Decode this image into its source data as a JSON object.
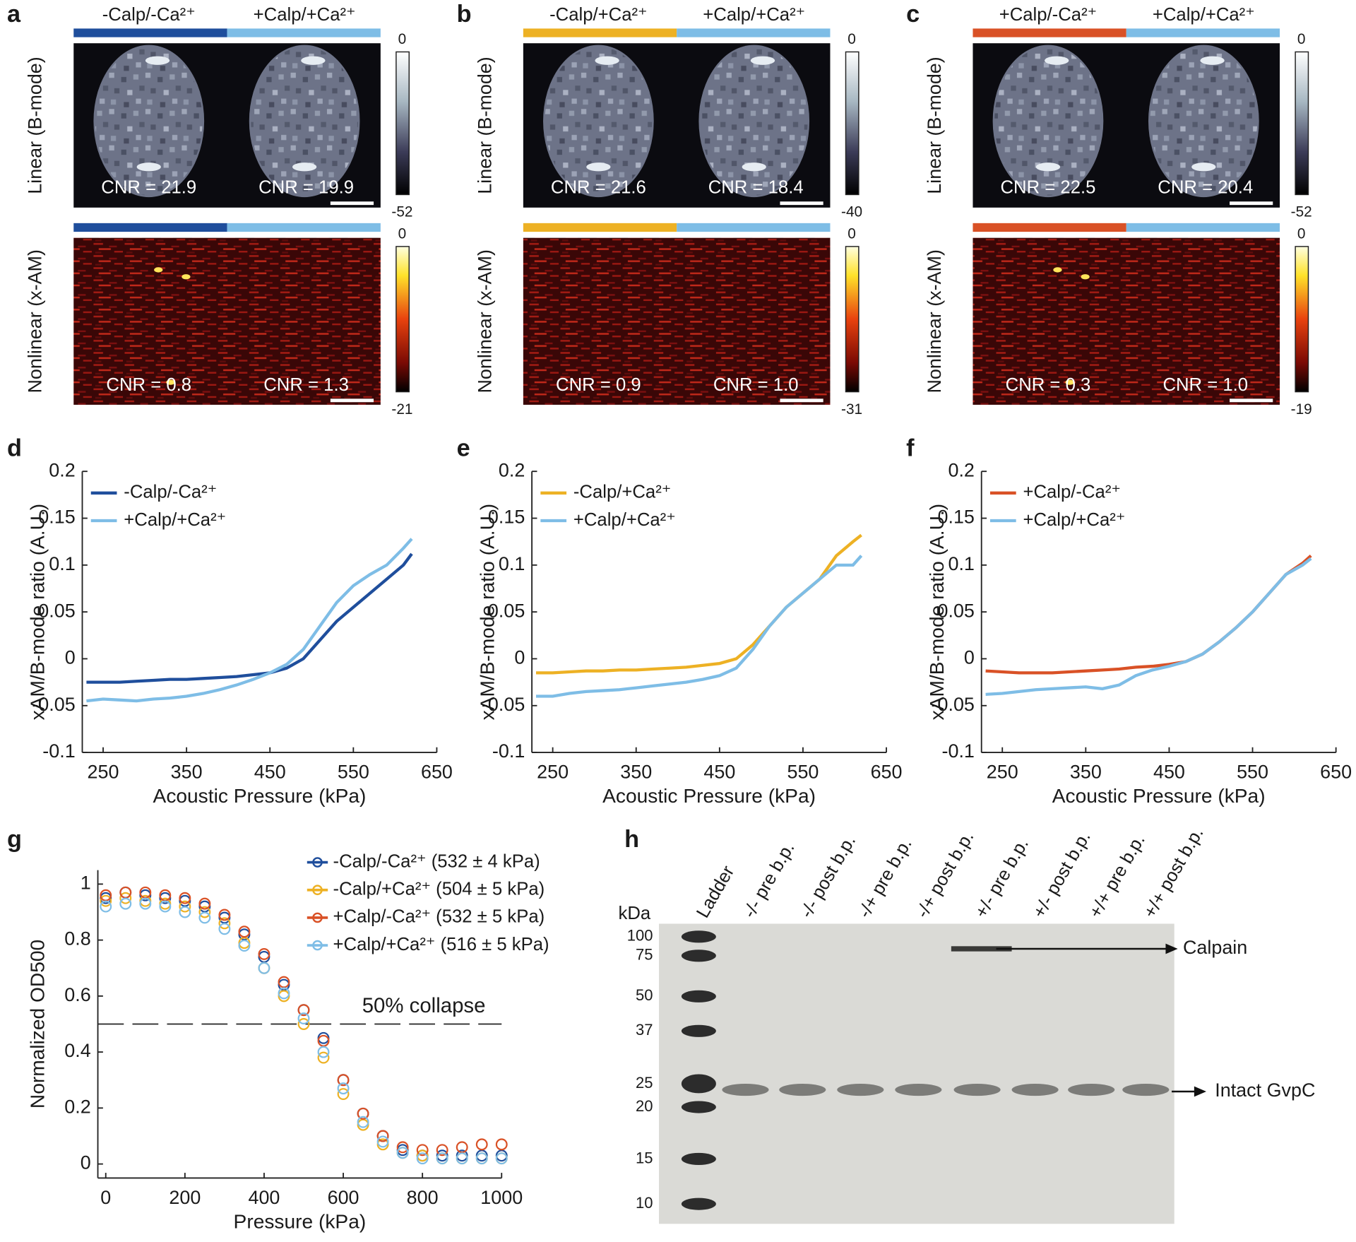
{
  "imaging": [
    {
      "panel": "a",
      "conditions": [
        "-Calp/-Ca²⁺",
        "+Calp/+Ca²⁺"
      ],
      "condition_colors": [
        "#1f4e9c",
        "#7ebde6"
      ],
      "rows": [
        {
          "label": "Linear (B-mode)",
          "cnr": [
            "CNR = 21.9",
            "CNR = 19.9"
          ],
          "colorbar_ticks": [
            0,
            -52
          ]
        },
        {
          "label": "Nonlinear (x-AM)",
          "cnr": [
            "CNR = 0.8",
            "CNR = 1.3"
          ],
          "colorbar_ticks": [
            0,
            -21
          ]
        }
      ]
    },
    {
      "panel": "b",
      "conditions": [
        "-Calp/+Ca²⁺",
        "+Calp/+Ca²⁺"
      ],
      "condition_colors": [
        "#edb124",
        "#7ebde6"
      ],
      "rows": [
        {
          "label": "Linear (B-mode)",
          "cnr": [
            "CNR = 21.6",
            "CNR = 18.4"
          ],
          "colorbar_ticks": [
            0,
            -40
          ]
        },
        {
          "label": "Nonlinear (x-AM)",
          "cnr": [
            "CNR = 0.9",
            "CNR = 1.0"
          ],
          "colorbar_ticks": [
            0,
            -31
          ]
        }
      ]
    },
    {
      "panel": "c",
      "conditions": [
        "+Calp/-Ca²⁺",
        "+Calp/+Ca²⁺"
      ],
      "condition_colors": [
        "#d95126",
        "#7ebde6"
      ],
      "rows": [
        {
          "label": "Linear (B-mode)",
          "cnr": [
            "CNR = 22.5",
            "CNR = 20.4"
          ],
          "colorbar_ticks": [
            0,
            -52
          ]
        },
        {
          "label": "Nonlinear (x-AM)",
          "cnr": [
            "CNR = 0.3",
            "CNR = 1.0"
          ],
          "colorbar_ticks": [
            0,
            -19
          ]
        }
      ]
    }
  ],
  "chart_data": [
    {
      "type": "line",
      "panel": "d",
      "xlabel": "Acoustic Pressure (kPa)",
      "ylabel": "xAM/B-mode ratio (A.U.)",
      "xlim": [
        225,
        650
      ],
      "xticks": [
        250,
        350,
        450,
        550,
        650
      ],
      "ylim": [
        -0.1,
        0.2
      ],
      "yticks": [
        -0.1,
        -0.05,
        0,
        0.05,
        0.1,
        0.15,
        0.2
      ],
      "x": [
        230,
        250,
        270,
        290,
        310,
        330,
        350,
        370,
        390,
        410,
        430,
        450,
        470,
        490,
        510,
        530,
        550,
        570,
        590,
        610,
        620
      ],
      "series": [
        {
          "name": "-Calp/-Ca²⁺",
          "color": "#1f4e9c",
          "values": [
            -0.025,
            -0.025,
            -0.025,
            -0.024,
            -0.023,
            -0.022,
            -0.022,
            -0.021,
            -0.02,
            -0.019,
            -0.017,
            -0.015,
            -0.01,
            0.0,
            0.02,
            0.04,
            0.055,
            0.07,
            0.085,
            0.1,
            0.112
          ]
        },
        {
          "name": "+Calp/+Ca²⁺",
          "color": "#7ebde6",
          "values": [
            -0.045,
            -0.043,
            -0.044,
            -0.045,
            -0.043,
            -0.042,
            -0.04,
            -0.037,
            -0.033,
            -0.028,
            -0.022,
            -0.015,
            -0.006,
            0.01,
            0.035,
            0.06,
            0.078,
            0.09,
            0.1,
            0.118,
            0.128
          ]
        }
      ]
    },
    {
      "type": "line",
      "panel": "e",
      "xlabel": "Acoustic Pressure (kPa)",
      "ylabel": "xAM/B-mode ratio (A.U.)",
      "xlim": [
        225,
        650
      ],
      "xticks": [
        250,
        350,
        450,
        550,
        650
      ],
      "ylim": [
        -0.1,
        0.2
      ],
      "yticks": [
        -0.1,
        -0.05,
        0,
        0.05,
        0.1,
        0.15,
        0.2
      ],
      "x": [
        230,
        250,
        270,
        290,
        310,
        330,
        350,
        370,
        390,
        410,
        430,
        450,
        470,
        490,
        510,
        530,
        550,
        570,
        590,
        610,
        620
      ],
      "series": [
        {
          "name": "-Calp/+Ca²⁺",
          "color": "#edb124",
          "values": [
            -0.015,
            -0.015,
            -0.014,
            -0.013,
            -0.013,
            -0.012,
            -0.012,
            -0.011,
            -0.01,
            -0.009,
            -0.007,
            -0.005,
            0.0,
            0.015,
            0.035,
            0.055,
            0.07,
            0.085,
            0.11,
            0.125,
            0.132
          ]
        },
        {
          "name": "+Calp/+Ca²⁺",
          "color": "#7ebde6",
          "values": [
            -0.04,
            -0.04,
            -0.037,
            -0.035,
            -0.034,
            -0.033,
            -0.031,
            -0.029,
            -0.027,
            -0.025,
            -0.022,
            -0.018,
            -0.01,
            0.01,
            0.035,
            0.055,
            0.07,
            0.085,
            0.1,
            0.1,
            0.11
          ]
        }
      ]
    },
    {
      "type": "line",
      "panel": "f",
      "xlabel": "Acoustic Pressure (kPa)",
      "ylabel": "xAM/B-mode ratio (A.U.)",
      "xlim": [
        225,
        650
      ],
      "xticks": [
        250,
        350,
        450,
        550,
        650
      ],
      "ylim": [
        -0.1,
        0.2
      ],
      "yticks": [
        -0.1,
        -0.05,
        0,
        0.05,
        0.1,
        0.15,
        0.2
      ],
      "x": [
        230,
        250,
        270,
        290,
        310,
        330,
        350,
        370,
        390,
        410,
        430,
        450,
        470,
        490,
        510,
        530,
        550,
        570,
        590,
        610,
        620
      ],
      "series": [
        {
          "name": "+Calp/-Ca²⁺",
          "color": "#d95126",
          "values": [
            -0.013,
            -0.014,
            -0.015,
            -0.015,
            -0.015,
            -0.014,
            -0.013,
            -0.012,
            -0.011,
            -0.009,
            -0.008,
            -0.006,
            -0.003,
            0.005,
            0.018,
            0.033,
            0.05,
            0.07,
            0.09,
            0.102,
            0.11
          ]
        },
        {
          "name": "+Calp/+Ca²⁺",
          "color": "#7ebde6",
          "values": [
            -0.038,
            -0.037,
            -0.035,
            -0.033,
            -0.032,
            -0.031,
            -0.03,
            -0.032,
            -0.028,
            -0.018,
            -0.012,
            -0.008,
            -0.003,
            0.005,
            0.018,
            0.033,
            0.05,
            0.07,
            0.09,
            0.1,
            0.107
          ]
        }
      ]
    },
    {
      "type": "scatter",
      "panel": "g",
      "xlabel": "Pressure (kPa)",
      "ylabel": "Normalized OD500",
      "xlim": [
        -20,
        1000
      ],
      "xticks": [
        0,
        200,
        400,
        600,
        800,
        1000
      ],
      "ylim": [
        -0.05,
        1.05
      ],
      "yticks": [
        0,
        0.2,
        0.4,
        0.6,
        0.8,
        1
      ],
      "reference_line": 0.5,
      "annotation": "50% collapse",
      "x": [
        0,
        50,
        100,
        150,
        200,
        250,
        300,
        350,
        400,
        450,
        500,
        550,
        600,
        650,
        700,
        750,
        800,
        850,
        900,
        950,
        1000
      ],
      "series": [
        {
          "name": "-Calp/-Ca²⁺ (532 ± 4 kPa)",
          "color": "#1f4e9c",
          "values": [
            0.95,
            0.97,
            0.96,
            0.95,
            0.94,
            0.92,
            0.88,
            0.82,
            0.74,
            0.64,
            0.55,
            0.45,
            0.3,
            0.18,
            0.1,
            0.05,
            0.03,
            0.03,
            0.03,
            0.03,
            0.03
          ]
        },
        {
          "name": "-Calp/+Ca²⁺ (504 ± 5 kPa)",
          "color": "#edb124",
          "values": [
            0.94,
            0.95,
            0.94,
            0.93,
            0.92,
            0.9,
            0.86,
            0.79,
            0.7,
            0.6,
            0.5,
            0.38,
            0.25,
            0.14,
            0.07,
            0.04,
            0.03,
            0.02,
            0.02,
            0.02,
            0.02
          ]
        },
        {
          "name": "+Calp/-Ca²⁺ (532 ± 5 kPa)",
          "color": "#d95126",
          "values": [
            0.96,
            0.97,
            0.97,
            0.96,
            0.95,
            0.93,
            0.89,
            0.83,
            0.75,
            0.65,
            0.55,
            0.44,
            0.3,
            0.18,
            0.1,
            0.06,
            0.05,
            0.05,
            0.06,
            0.07,
            0.07
          ]
        },
        {
          "name": "+Calp/+Ca²⁺ (516 ± 5 kPa)",
          "color": "#7ebde6",
          "values": [
            0.92,
            0.93,
            0.93,
            0.92,
            0.9,
            0.88,
            0.84,
            0.78,
            0.7,
            0.61,
            0.52,
            0.4,
            0.27,
            0.15,
            0.08,
            0.04,
            0.02,
            0.02,
            0.02,
            0.02,
            0.02
          ]
        }
      ]
    }
  ],
  "gel": {
    "panel": "h",
    "unit": "kDa",
    "lanes": [
      "Ladder",
      "-/- pre b.p.",
      "-/- post b.p.",
      "-/+ pre b.p.",
      "-/+ post b.p.",
      "+/- pre b.p.",
      "+/- post b.p.",
      "+/+ pre b.p.",
      "+/+ post b.p."
    ],
    "markers": [
      100,
      75,
      50,
      37,
      25,
      20,
      15,
      10
    ],
    "annotations": [
      "Calpain",
      "Intact GvpC"
    ]
  }
}
